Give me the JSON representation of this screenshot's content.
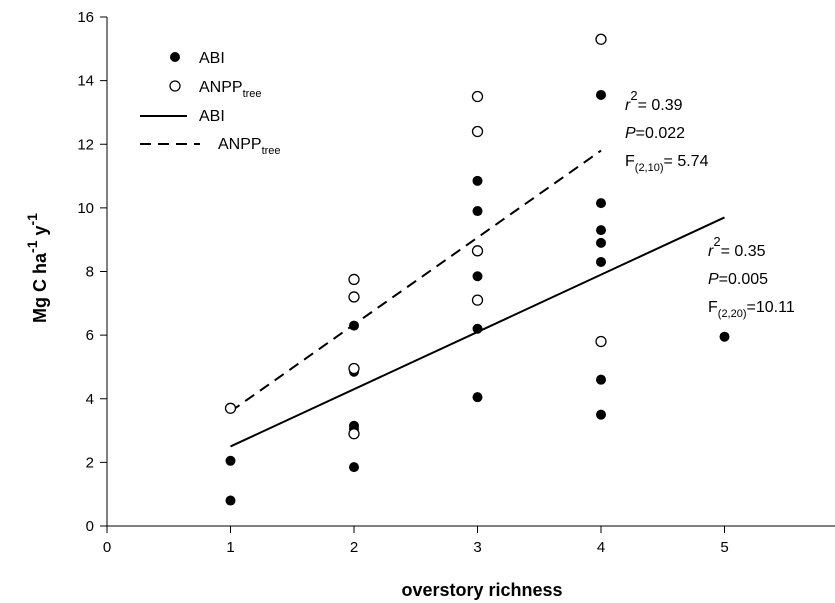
{
  "chart_data": {
    "type": "scatter",
    "xlabel": "overstory richness",
    "ylabel_parts": {
      "base": "Mg C ha",
      "exp1": "-1",
      "mid": " y",
      "exp2": "-1"
    },
    "xlim": [
      0,
      5
    ],
    "ylim": [
      0,
      16
    ],
    "x_ticks": [
      "0",
      "1",
      "2",
      "3",
      "4",
      "5"
    ],
    "y_ticks": [
      "0",
      "2",
      "4",
      "6",
      "8",
      "10",
      "12",
      "14",
      "16"
    ],
    "grid": false,
    "legend_position": "top-left",
    "legend": [
      {
        "marker": "filled-circle",
        "label": "ABI",
        "sub": ""
      },
      {
        "marker": "open-circle",
        "label": "ANPP",
        "sub": "tree"
      },
      {
        "marker": "solid-line",
        "label": "ABI",
        "sub": ""
      },
      {
        "marker": "dashed-line",
        "label": "ANPP",
        "sub": "tree"
      }
    ],
    "series": [
      {
        "name": "ABI",
        "marker": "filled",
        "points": [
          [
            1,
            0.8
          ],
          [
            1,
            2.05
          ],
          [
            2,
            1.85
          ],
          [
            2,
            3.05
          ],
          [
            2,
            3.15
          ],
          [
            2,
            4.85
          ],
          [
            2,
            6.3
          ],
          [
            3,
            4.05
          ],
          [
            3,
            6.2
          ],
          [
            3,
            7.85
          ],
          [
            3,
            9.9
          ],
          [
            3,
            10.85
          ],
          [
            4,
            3.5
          ],
          [
            4,
            4.6
          ],
          [
            4,
            8.3
          ],
          [
            4,
            8.9
          ],
          [
            4,
            9.3
          ],
          [
            4,
            10.15
          ],
          [
            4,
            13.55
          ],
          [
            5,
            5.95
          ]
        ]
      },
      {
        "name": "ANPP tree",
        "marker": "open",
        "points": [
          [
            1,
            3.7
          ],
          [
            2,
            2.9
          ],
          [
            2,
            4.95
          ],
          [
            2,
            7.2
          ],
          [
            2,
            7.75
          ],
          [
            3,
            7.1
          ],
          [
            3,
            8.65
          ],
          [
            3,
            12.4
          ],
          [
            3,
            13.5
          ],
          [
            4,
            5.8
          ],
          [
            4,
            15.3
          ]
        ]
      }
    ],
    "fits": [
      {
        "name": "ABI",
        "style": "solid",
        "x": [
          1,
          5
        ],
        "y": [
          2.5,
          9.7
        ]
      },
      {
        "name": "ANPP tree",
        "style": "dashed",
        "x": [
          1,
          4
        ],
        "y": [
          3.6,
          11.8
        ]
      }
    ],
    "annotations": [
      {
        "r2": "= 0.39",
        "p": "=0.022",
        "f_sub": "(2,10)",
        "f_val": "= 5.74"
      },
      {
        "r2": "= 0.35",
        "p": "=0.005",
        "f_sub": "(2,20)",
        "f_val": "=10.11"
      }
    ]
  }
}
